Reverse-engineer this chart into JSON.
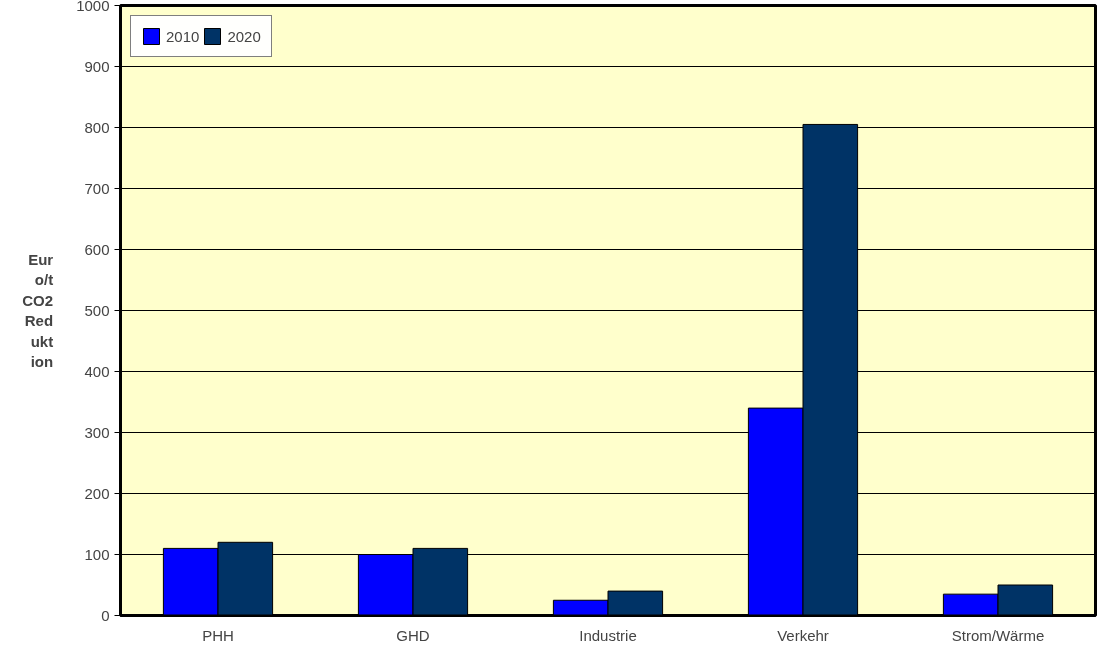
{
  "chart_data": {
    "type": "bar",
    "ylabel": "Euro/t CO2 Reduktion",
    "categories": [
      "PHH",
      "GHD",
      "Industrie",
      "Verkehr",
      "Strom/Wärme"
    ],
    "series": [
      {
        "name": "2010",
        "color": "#0000ff",
        "values": [
          110,
          100,
          25,
          340,
          35
        ]
      },
      {
        "name": "2020",
        "color": "#003366",
        "values": [
          120,
          110,
          40,
          805,
          50
        ]
      }
    ],
    "ylim": [
      0,
      1000
    ],
    "yticks": [
      0,
      100,
      200,
      300,
      400,
      500,
      600,
      700,
      800,
      900,
      1000
    ],
    "grid": "y",
    "legend": "top left"
  }
}
